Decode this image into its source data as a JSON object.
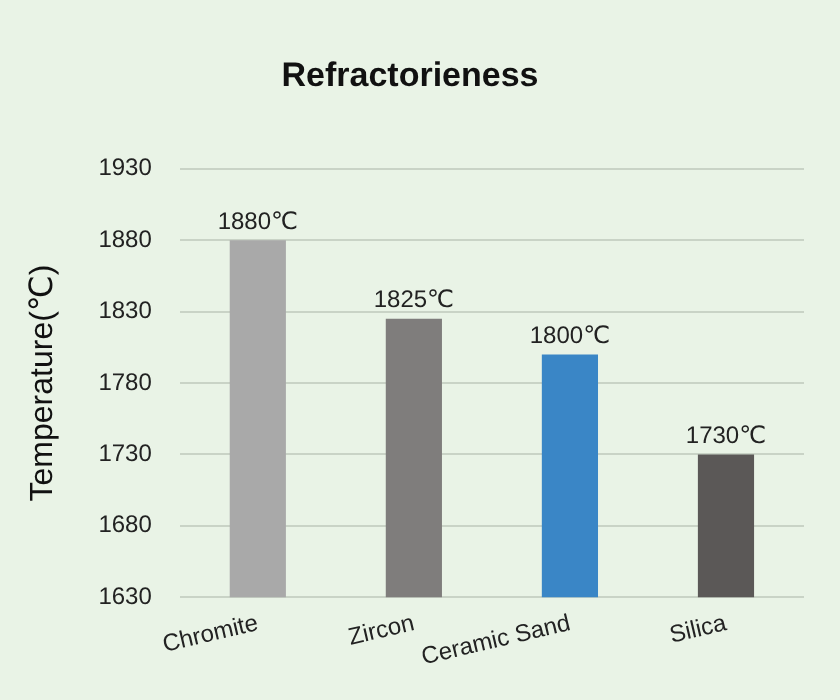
{
  "chart_data": {
    "type": "bar",
    "title": "Refractorieness",
    "ylabel": "Temperature(℃)",
    "categories": [
      "Chromite",
      "Zircon",
      "Ceramic Sand",
      "Silica"
    ],
    "values": [
      1880,
      1825,
      1800,
      1730
    ],
    "colors": [
      "#a9a9a9",
      "#7f7d7c",
      "#3a86c6",
      "#5b5857"
    ],
    "value_labels": [
      "1880℃",
      "1825℃",
      "1800℃",
      "1730℃"
    ],
    "ylim": [
      1630,
      1930
    ],
    "yticks": [
      1630,
      1680,
      1730,
      1780,
      1830,
      1880,
      1930
    ],
    "grid": "y"
  }
}
